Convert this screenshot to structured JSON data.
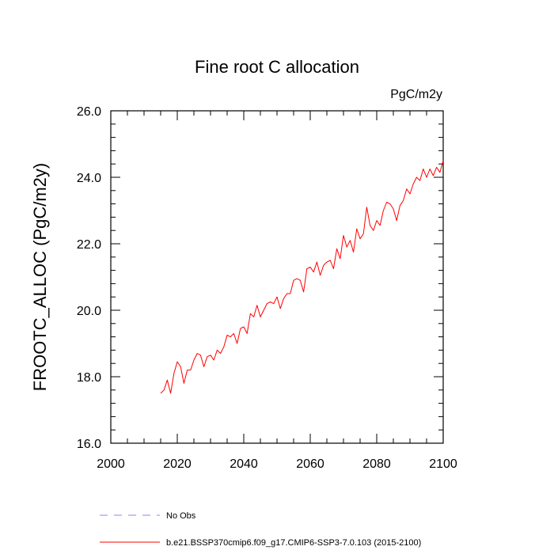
{
  "chart_data": {
    "type": "line",
    "title": "Fine root C allocation",
    "units": "PgC/m2y",
    "ylabel": "FROOTC_ALLOC  (PgC/m2y)",
    "xlabel": "",
    "xlim": [
      2000,
      2100
    ],
    "ylim": [
      16.0,
      26.0
    ],
    "xticks": [
      2000,
      2020,
      2040,
      2060,
      2080,
      2100
    ],
    "xtick_labels": [
      "2000",
      "2020",
      "2040",
      "2060",
      "2080",
      "2100"
    ],
    "yticks": [
      16.0,
      18.0,
      20.0,
      22.0,
      24.0,
      26.0
    ],
    "ytick_labels": [
      "16.0",
      "18.0",
      "20.0",
      "22.0",
      "24.0",
      "26.0"
    ],
    "grid": false,
    "legend_position": "bottom-left",
    "series": [
      {
        "name": "b.e21.BSSP370cmip6.f09_g17.CMIP6-SSP3-7.0.103 (2015-2100)",
        "color": "#ff0000",
        "style": "solid",
        "x": [
          2015,
          2016,
          2017,
          2018,
          2019,
          2020,
          2021,
          2022,
          2023,
          2024,
          2025,
          2026,
          2027,
          2028,
          2029,
          2030,
          2031,
          2032,
          2033,
          2034,
          2035,
          2036,
          2037,
          2038,
          2039,
          2040,
          2041,
          2042,
          2043,
          2044,
          2045,
          2046,
          2047,
          2048,
          2049,
          2050,
          2051,
          2052,
          2053,
          2054,
          2055,
          2056,
          2057,
          2058,
          2059,
          2060,
          2061,
          2062,
          2063,
          2064,
          2065,
          2066,
          2067,
          2068,
          2069,
          2070,
          2071,
          2072,
          2073,
          2074,
          2075,
          2076,
          2077,
          2078,
          2079,
          2080,
          2081,
          2082,
          2083,
          2084,
          2085,
          2086,
          2087,
          2088,
          2089,
          2090,
          2091,
          2092,
          2093,
          2094,
          2095,
          2096,
          2097,
          2098,
          2099,
          2100
        ],
        "y": [
          17.5,
          17.6,
          17.9,
          17.5,
          18.1,
          18.45,
          18.3,
          17.8,
          18.2,
          18.2,
          18.5,
          18.7,
          18.65,
          18.3,
          18.6,
          18.65,
          18.5,
          18.8,
          18.7,
          18.9,
          19.25,
          19.2,
          19.3,
          19.0,
          19.45,
          19.5,
          19.3,
          19.9,
          19.8,
          20.15,
          19.8,
          20.0,
          20.2,
          20.25,
          20.2,
          20.4,
          20.05,
          20.35,
          20.5,
          20.5,
          20.9,
          20.95,
          20.9,
          20.55,
          21.25,
          21.3,
          21.15,
          21.45,
          21.05,
          21.35,
          21.45,
          21.5,
          21.25,
          21.85,
          21.55,
          22.25,
          21.9,
          22.1,
          21.75,
          22.45,
          22.15,
          22.3,
          23.1,
          22.55,
          22.4,
          22.7,
          22.55,
          23.0,
          23.25,
          23.2,
          23.05,
          22.7,
          23.15,
          23.3,
          23.65,
          23.5,
          23.8,
          24.0,
          23.9,
          24.25,
          24.0,
          24.25,
          24.05,
          24.3,
          24.15,
          24.5
        ]
      },
      {
        "name": "No Obs",
        "color": "#8a8af0",
        "style": "dashed",
        "x": [],
        "y": []
      }
    ]
  }
}
